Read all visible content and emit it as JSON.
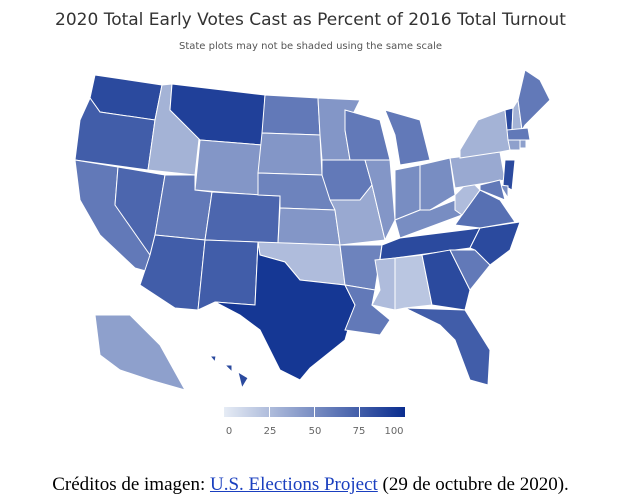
{
  "title": "2020 Total Early Votes Cast as Percent of 2016 Total Turnout",
  "subtitle": "State plots may not be shaded using the same scale",
  "colorscale": {
    "min_color": "#e6ecf5",
    "max_color": "#0a2d8f",
    "range": [
      0,
      100
    ],
    "ticks": [
      "0",
      "25",
      "50",
      "75",
      "100"
    ]
  },
  "states": {
    "WA": 85,
    "OR": 75,
    "CA": 60,
    "NV": 70,
    "ID": 30,
    "MT": 90,
    "WY": 45,
    "UT": 60,
    "AZ": 75,
    "CO": 70,
    "NM": 75,
    "ND": 60,
    "SD": 45,
    "NE": 55,
    "KS": 45,
    "OK": 25,
    "TX": 95,
    "MN": 45,
    "IA": 60,
    "MO": 35,
    "AR": 55,
    "LA": 60,
    "WI": 60,
    "IL": 45,
    "MI": 60,
    "IN": 50,
    "OH": 50,
    "KY": 50,
    "TN": 85,
    "MS": 25,
    "AL": 20,
    "GA": 85,
    "FL": 75,
    "SC": 60,
    "NC": 85,
    "VA": 65,
    "WV": 25,
    "PA": 35,
    "NY": 30,
    "VT": 85,
    "NH": 30,
    "ME": 60,
    "MA": 60,
    "CT": 40,
    "RI": 40,
    "NJ": 85,
    "DE": 50,
    "MD": 60,
    "AK": 40,
    "HI": 85
  },
  "caption": {
    "prefix": "Créditos de imagen: ",
    "link": "U.S. Elections Project",
    "suffix": " (29 de octubre de 2020)."
  }
}
